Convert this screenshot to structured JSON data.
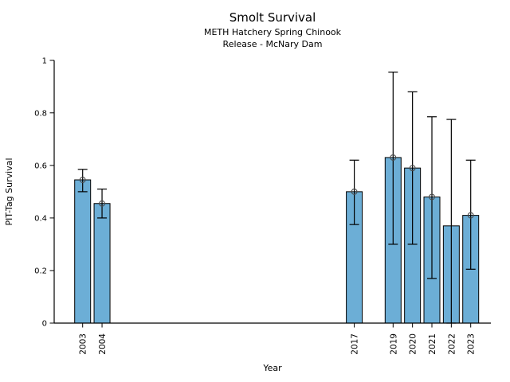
{
  "chart_data": {
    "type": "bar",
    "title": "Smolt Survival",
    "subtitle1": "METH Hatchery Spring Chinook",
    "subtitle2": "Release - McNary Dam",
    "xlabel": "Year",
    "ylabel": "PIT-Tag Survival",
    "ylim": [
      0,
      1
    ],
    "yticks": [
      0,
      0.2,
      0.4,
      0.6,
      0.8,
      1
    ],
    "ytick_labels": [
      "0",
      "0.2",
      "0.4",
      "0.6",
      "0.8",
      "1"
    ],
    "categories": [
      "2003",
      "2004",
      "2017",
      "2019",
      "2020",
      "2021",
      "2022",
      "2023"
    ],
    "values": [
      0.545,
      0.455,
      0.5,
      0.63,
      0.59,
      0.48,
      0.37,
      0.41
    ],
    "error_low": [
      0.5,
      0.4,
      0.375,
      0.3,
      0.3,
      0.17,
      0.0,
      0.205
    ],
    "error_high": [
      0.585,
      0.51,
      0.62,
      0.955,
      0.88,
      0.785,
      0.775,
      0.62
    ],
    "markers": [
      true,
      true,
      true,
      true,
      true,
      true,
      false,
      true
    ],
    "bar_color": "#6caed6",
    "bar_edge_color": "#000000",
    "errorbar_color": "#000000",
    "marker_edge_color": "#4a4a4a",
    "axis_color": "#000000",
    "grid": false,
    "legend": "none"
  }
}
